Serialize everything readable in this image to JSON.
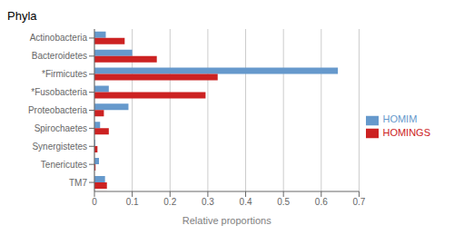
{
  "chart_data": {
    "type": "bar",
    "title": "Phyla",
    "orientation": "horizontal",
    "categories": [
      "Actinobacteria",
      "Bacteroidetes",
      "*Firmicutes",
      "*Fusobacteria",
      "Proteobacteria",
      "Spirochaetes",
      "Synergistetes",
      "Tenericutes",
      "TM7"
    ],
    "series": [
      {
        "name": "HOMIM",
        "color": "#6699cc",
        "values": [
          0.03,
          0.1,
          0.644,
          0.038,
          0.09,
          0.015,
          0.002,
          0.012,
          0.028
        ]
      },
      {
        "name": "HOMINGS",
        "color": "#cc2222",
        "values": [
          0.08,
          0.165,
          0.326,
          0.294,
          0.025,
          0.038,
          0.008,
          0.003,
          0.033
        ]
      }
    ],
    "xlabel": "Relative proportions",
    "xlim": [
      0,
      0.7
    ],
    "xticks": [
      0,
      0.1,
      0.2,
      0.3,
      0.4,
      0.5,
      0.6,
      0.7
    ],
    "grid": true,
    "legend": "right"
  }
}
